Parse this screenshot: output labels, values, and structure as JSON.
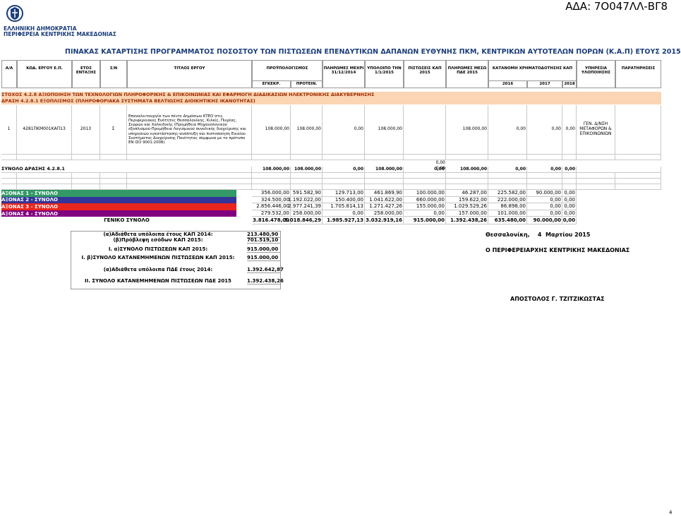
{
  "header": {
    "ada": "ΑΔΑ: 7Ο047ΛΛ-ΒΓ8",
    "org_line1": "ΕΛΛΗΝΙΚΗ ΔΗΜΟΚΡΑΤΙΑ",
    "org_line2": "ΠΕΡΙΦΕΡΕΙΑ ΚΕΝΤΡΙΚΗΣ ΜΑΚΕΔΟΝΙΑΣ"
  },
  "title": "ΠΙΝΑΚΑΣ ΚΑΤΑΡΤΙΣΗΣ ΠΡΟΓΡΑΜΜΑΤΟΣ ΠΟΣΟΣΤΟΥ ΤΩΝ ΠΙΣΤΩΣΕΩΝ ΕΠΕΝΔΥΤΙΚΩΝ ΔΑΠΑΝΩΝ ΕΥΘΥΝΗΣ ΠΚΜ, ΚΕΝΤΡΙΚΩΝ ΑΥΤΟΤΕΛΩΝ ΠΟΡΩΝ (Κ.Α.Π) ΕΤΟΥΣ 2015",
  "table": {
    "columns": {
      "aa": "Α/Α",
      "code": "ΚΩΔ. ΕΡΓΟΥ Ε.Π.",
      "year": "ΕΤΟΣ ΕΝΤΑΞΗΣ",
      "sn": "Σ/Ν",
      "title": "ΤΙΤΛΟΣ ΕΡΓΟΥ",
      "budget": "ΠΡΟΫΠΟΛΟΓΙΣΜΟΣ",
      "paid": "ΠΛΗΡΩΜΕΣ ΜΕΧΡΙ 31/12/2014",
      "balance": "ΥΠΟΛΟΙΠΟ ΤΗΝ 1/1/2015",
      "kap": "ΠΙΣΤΩΣΕΙΣ ΚΑΠ 2015",
      "pde": "ΠΛΗΡΩΜΕΣ ΜΕΣΩ ΠΔΕ 2015",
      "allocation": "ΚΑΤΑΝΟΜΗ ΧΡΗΜΑΤΟΔΟΤΗΣΗΣ ΚΑΠ",
      "agency": "ΥΠΗΡΕΣΙΑ ΥΛΟΠΟΙΗΣΗΣ",
      "notes": "ΠΑΡΑΤΗΡΗΣΕΙΣ"
    },
    "budget_sub": [
      "ΕΓΚΕΚΡ.",
      "ΠΡΟΤΕΙΝ."
    ],
    "allocation_sub": [
      "2016",
      "2017",
      "2018"
    ],
    "sections": [
      "ΣΤΟΧΟΣ 4.2.8 ΑΞΙΟΠΟΙΗΣΗ ΤΩΝ ΤΕΧΝΟΛΟΓΙΩΝ ΠΛΗΡΟΦΟΡΙΚΗΣ & ΕΠΙΚΟΙΝΩΝΙΑΣ ΚΑΙ ΕΦΑΡΜΟΓΗ ΔΙΑΔΙΚΑΣΙΩΝ ΗΛΕΚΤΡΟΝΙΚΗΣ ΔΙΑΚΥΒΕΡΝΗΣΗΣ",
      "ΔΡΑΣΗ 4.2.8.1 ΕΞΟΠΛΙΣΜΟΣ (ΠΛΗΡΟΦΟΡΙΑΚΑ ΣΥΣΤΗΜΑΤΑ ΒΕΛΤΙΩΣΗΣ ΔΙΟΙΚΗΤΙΚΗΣ ΙΚΑΝΟΤΗΤΑΣ)"
    ],
    "project": {
      "aa": "1",
      "code": "4281ΠΚΜ001ΚΑΠ13",
      "year": "2013",
      "sn": "Σ",
      "title": "Επαναλειτουργία των πέντε Δημόσιων ΚΤΕΟ στις Περιφερειακές Ενότητες Θεσσαλονίκης, Κιλκίς, Πιερίας, Σερρών και Χαλκιδικής (Προμήθεια Μηχανολογικού εξοπλισμού-Προμήθεια Λογισμικού συνολικής διαχείρισης και υπηρεσιών εγκατάστασης-ανάπτυξη και πιστοποίηση Ενιαίου Συστήματος Διαχείρισης Ποιότητας σύμφωνα με το πρότυπο ΕΝ ΙΣΟ 9001:2008)",
      "values": [
        "108.000,00",
        "108.000,00",
        "0,00",
        "108.000,00",
        null,
        "108.000,00",
        "0,00",
        "0,00",
        "0,00"
      ],
      "agency": "ΓΕΝ. Δ/ΝΣΗ ΜΕΤΑΦΟΡΩΝ & ΕΠΙΚΟΙΝΩΝΙΩΝ"
    },
    "zero_lines": [
      "0,00",
      "0,00"
    ],
    "action_total": {
      "label": "ΣΥΝΟΛΟ ΔΡΑΣΗΣ 4.2.8.1",
      "values": [
        "108.000,00",
        "108.000,00",
        "0,00",
        "108.000,00",
        "0,00",
        "108.000,00",
        "0,00",
        "0,00",
        "0,00"
      ]
    },
    "axes": [
      {
        "label": "ΑΞΟΝΑΣ 1 - ΣΥΝΟΛΟ",
        "color": "#339966",
        "values": [
          "356.000,00",
          "591.582,90",
          "129.713,00",
          "461.869,90",
          "100.000,00",
          "46.287,00",
          "225.582,00",
          "90.000,00",
          "0,00"
        ]
      },
      {
        "label": "ΑΞΟΝΑΣ 2 - ΣΥΝΟΛΟ",
        "color": "#333399",
        "values": [
          "324.500,00",
          "1.192.022,00",
          "150.400,00",
          "1.041.622,00",
          "660.000,00",
          "159.622,00",
          "222.000,00",
          "0,00",
          "0,00"
        ]
      },
      {
        "label": "ΑΞΟΝΑΣ 3 - ΣΥΝΟΛΟ",
        "color": "#e8261e",
        "values": [
          "2.856.446,00",
          "2.977.241,39",
          "1.705.814,13",
          "1.271.427,26",
          "155.000,00",
          "1.029.529,26",
          "86.898,00",
          "0,00",
          "0,00"
        ]
      },
      {
        "label": "ΑΞΟΝΑΣ 4 - ΣΥΝΟΛΟ",
        "color": "#800080",
        "values": [
          "279.532,00",
          "258.000,00",
          "0,00",
          "258.000,00",
          "0,00",
          "157.000,00",
          "101.000,00",
          "0,00",
          "0,00"
        ]
      }
    ],
    "grand_total": {
      "label": "ΓΕΝΙΚΟ ΣΥΝΟΛΟ",
      "values": [
        "3.816.478,00",
        "5.018.846,29",
        "1.985.927,13",
        "3.032.919,16",
        "915.000,00",
        "1.392.438,26",
        "635.480,00",
        "90.000,00",
        "0,00"
      ]
    }
  },
  "summary": [
    {
      "label": "(α)Αδιάθετα υπόλοιπα έτους ΚΑΠ 2014:",
      "value": "213.480,90"
    },
    {
      "label": "(β)Πρόβλεψη εσόδων ΚΑΠ 2015:",
      "value": "701.519,10"
    },
    {
      "label": "Ι. α)ΣΥΝΟΛΟ ΠΙΣΤΩΣΕΩΝ ΚΑΠ 2015:",
      "value": "915.000,00"
    },
    {
      "label": "Ι. β)ΣΥΝΟΛΟ ΚΑΤΑΝΕΜΗΜΕΝΩΝ ΠΙΣΤΩΣΕΩΝ ΚΑΠ 2015:",
      "value": "915.000,00"
    },
    {
      "label": "(α)Αδιάθετα υπόλοιπα ΠΔΕ έτους 2014:",
      "value": "1.392.642,87"
    },
    {
      "label": "ΙΙ. ΣΥΝΟΛΟ ΚΑΤΑΝΕΜΗΜΕΝΩΝ ΠΙΣΤΩΣΕΩΝ ΠΔΕ 2015",
      "value": "1.392.438,26"
    }
  ],
  "signature": {
    "place_date": "Θεσσαλονίκη,    4  Μαρτίου 2015",
    "role": "Ο ΠΕΡΙΦΕΡΕΙΑΡΧΗΣ ΚΕΝΤΡΙΚΗΣ ΜΑΚΕΔΟΝΙΑΣ",
    "name": "ΑΠΟΣΤΟΛΟΣ Γ. ΤΖΙΤΖΙΚΩΣΤΑΣ"
  },
  "page_number": "4"
}
